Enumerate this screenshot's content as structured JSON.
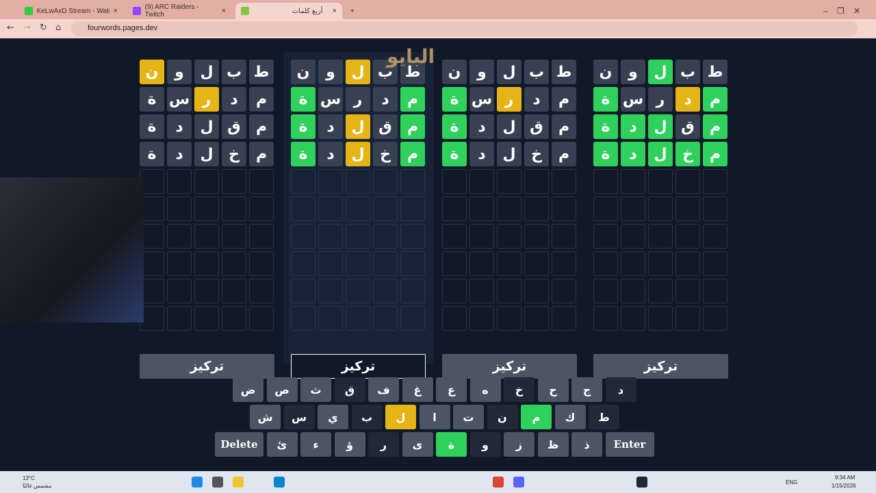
{
  "browser": {
    "tabs": [
      {
        "title": "KeLwAxD Stream - Watch Live o",
        "color": "#2ecc40"
      },
      {
        "title": "(9) ARC Raiders - Twitch",
        "color": "#9146ff"
      },
      {
        "title": "أربع كلمات",
        "color": "#8bc34a"
      }
    ],
    "url": "fourwords.pages.dev"
  },
  "watermark": "البايو",
  "colors": {
    "green": "#2fd15c",
    "yellow": "#e5b517",
    "absent": "#374151"
  },
  "boards": [
    {
      "rows": [
        [
          [
            "ن",
            "y"
          ],
          [
            "و",
            "n"
          ],
          [
            "ل",
            "n"
          ],
          [
            "ب",
            "n"
          ],
          [
            "ط",
            "n"
          ]
        ],
        [
          [
            "ة",
            "n"
          ],
          [
            "س",
            "n"
          ],
          [
            "ر",
            "y"
          ],
          [
            "د",
            "n"
          ],
          [
            "م",
            "n"
          ]
        ],
        [
          [
            "ة",
            "n"
          ],
          [
            "د",
            "n"
          ],
          [
            "ل",
            "n"
          ],
          [
            "ق",
            "n"
          ],
          [
            "م",
            "n"
          ]
        ],
        [
          [
            "ة",
            "n"
          ],
          [
            "د",
            "n"
          ],
          [
            "ل",
            "n"
          ],
          [
            "خ",
            "n"
          ],
          [
            "م",
            "n"
          ]
        ]
      ],
      "focus_label": "تركيز",
      "selected": false
    },
    {
      "rows": [
        [
          [
            "ن",
            "n"
          ],
          [
            "و",
            "n"
          ],
          [
            "ل",
            "y"
          ],
          [
            "ب",
            "n"
          ],
          [
            "ط",
            "n"
          ]
        ],
        [
          [
            "ة",
            "g"
          ],
          [
            "س",
            "n"
          ],
          [
            "ر",
            "n"
          ],
          [
            "د",
            "n"
          ],
          [
            "م",
            "g"
          ]
        ],
        [
          [
            "ة",
            "g"
          ],
          [
            "د",
            "n"
          ],
          [
            "ل",
            "y"
          ],
          [
            "ق",
            "n"
          ],
          [
            "م",
            "g"
          ]
        ],
        [
          [
            "ة",
            "g"
          ],
          [
            "د",
            "n"
          ],
          [
            "ل",
            "y"
          ],
          [
            "خ",
            "n"
          ],
          [
            "م",
            "g"
          ]
        ]
      ],
      "focus_label": "تركيز",
      "selected": true
    },
    {
      "rows": [
        [
          [
            "ن",
            "n"
          ],
          [
            "و",
            "n"
          ],
          [
            "ل",
            "n"
          ],
          [
            "ب",
            "n"
          ],
          [
            "ط",
            "n"
          ]
        ],
        [
          [
            "ة",
            "g"
          ],
          [
            "س",
            "n"
          ],
          [
            "ر",
            "y"
          ],
          [
            "د",
            "n"
          ],
          [
            "م",
            "n"
          ]
        ],
        [
          [
            "ة",
            "g"
          ],
          [
            "د",
            "n"
          ],
          [
            "ل",
            "n"
          ],
          [
            "ق",
            "n"
          ],
          [
            "م",
            "n"
          ]
        ],
        [
          [
            "ة",
            "g"
          ],
          [
            "د",
            "n"
          ],
          [
            "ل",
            "n"
          ],
          [
            "خ",
            "n"
          ],
          [
            "م",
            "n"
          ]
        ]
      ],
      "focus_label": "تركيز",
      "selected": false
    },
    {
      "rows": [
        [
          [
            "ن",
            "n"
          ],
          [
            "و",
            "n"
          ],
          [
            "ل",
            "g"
          ],
          [
            "ب",
            "n"
          ],
          [
            "ط",
            "n"
          ]
        ],
        [
          [
            "ة",
            "g"
          ],
          [
            "س",
            "n"
          ],
          [
            "ر",
            "n"
          ],
          [
            "د",
            "y"
          ],
          [
            "م",
            "g"
          ]
        ],
        [
          [
            "ة",
            "g"
          ],
          [
            "د",
            "g"
          ],
          [
            "ل",
            "g"
          ],
          [
            "ق",
            "n"
          ],
          [
            "م",
            "g"
          ]
        ],
        [
          [
            "ة",
            "g"
          ],
          [
            "د",
            "g"
          ],
          [
            "ل",
            "g"
          ],
          [
            "خ",
            "g"
          ],
          [
            "م",
            "g"
          ]
        ]
      ],
      "focus_label": "تركيز",
      "selected": false
    }
  ],
  "keyboard": [
    [
      [
        "ض",
        "u"
      ],
      [
        "ص",
        "u"
      ],
      [
        "ث",
        "u"
      ],
      [
        "ق",
        "d"
      ],
      [
        "ف",
        "u"
      ],
      [
        "غ",
        "u"
      ],
      [
        "ع",
        "u"
      ],
      [
        "ه",
        "u"
      ],
      [
        "خ",
        "d"
      ],
      [
        "ح",
        "u"
      ],
      [
        "ج",
        "u"
      ],
      [
        "د",
        "d"
      ]
    ],
    [
      [
        "ش",
        "u"
      ],
      [
        "س",
        "d"
      ],
      [
        "ي",
        "u"
      ],
      [
        "ب",
        "d"
      ],
      [
        "ل",
        "y"
      ],
      [
        "ا",
        "u"
      ],
      [
        "ت",
        "u"
      ],
      [
        "ن",
        "d"
      ],
      [
        "م",
        "g"
      ],
      [
        "ك",
        "u"
      ],
      [
        "ط",
        "d"
      ]
    ],
    [
      [
        "Delete",
        "u"
      ],
      [
        "ئ",
        "u"
      ],
      [
        "ء",
        "u"
      ],
      [
        "ؤ",
        "u"
      ],
      [
        "ر",
        "d"
      ],
      [
        "ى",
        "u"
      ],
      [
        "ة",
        "g"
      ],
      [
        "و",
        "d"
      ],
      [
        "ز",
        "u"
      ],
      [
        "ظ",
        "u"
      ],
      [
        "ذ",
        "u"
      ],
      [
        "Enter",
        "u"
      ]
    ]
  ],
  "taskbar": {
    "temp": "13°C",
    "weather": "مشمس غالبًا",
    "lang": "ENG",
    "time": "9:34 AM",
    "date": "1/15/2026"
  }
}
